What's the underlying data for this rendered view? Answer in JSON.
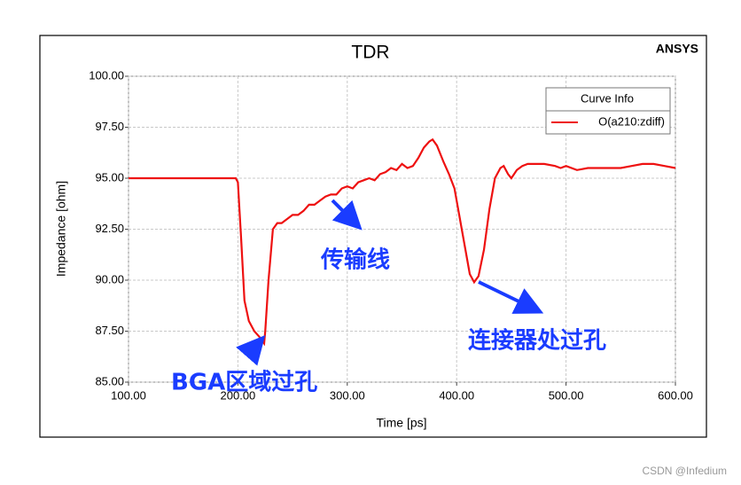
{
  "chart_data": {
    "type": "line",
    "title": "TDR",
    "brand": "ANSYS",
    "xlabel": "Time [ps]",
    "ylabel": "Impedance [ohm]",
    "xlim": [
      100,
      600
    ],
    "ylim": [
      85,
      100
    ],
    "xticks": [
      {
        "value": 100,
        "label": "100.00"
      },
      {
        "value": 200,
        "label": "200.00"
      },
      {
        "value": 300,
        "label": "300.00"
      },
      {
        "value": 400,
        "label": "400.00"
      },
      {
        "value": 500,
        "label": "500.00"
      },
      {
        "value": 600,
        "label": "600.00"
      }
    ],
    "yticks": [
      {
        "value": 85,
        "label": "85.00"
      },
      {
        "value": 87.5,
        "label": "87.50"
      },
      {
        "value": 90,
        "label": "90.00"
      },
      {
        "value": 92.5,
        "label": "92.50"
      },
      {
        "value": 95,
        "label": "95.00"
      },
      {
        "value": 97.5,
        "label": "97.50"
      },
      {
        "value": 100,
        "label": "100.00"
      }
    ],
    "grid": true,
    "legend_title": "Curve Info",
    "legend_position": "upper-right",
    "x": [
      100,
      198,
      200,
      203,
      206,
      210,
      215,
      220,
      224,
      225,
      228,
      232,
      236,
      240,
      245,
      250,
      255,
      260,
      265,
      270,
      275,
      280,
      285,
      290,
      295,
      300,
      305,
      310,
      315,
      320,
      325,
      330,
      335,
      340,
      345,
      350,
      355,
      360,
      365,
      370,
      375,
      378,
      382,
      388,
      393,
      398,
      403,
      408,
      412,
      416,
      420,
      425,
      430,
      435,
      440,
      443,
      447,
      450,
      455,
      460,
      465,
      470,
      480,
      490,
      495,
      500,
      510,
      520,
      530,
      540,
      550,
      560,
      570,
      575,
      580,
      590,
      600
    ],
    "series": [
      {
        "name": "O(a210:zdiff)",
        "color": "#ee1111",
        "values": [
          95,
          95,
          94.8,
          92,
          89,
          88,
          87.5,
          87.2,
          86.9,
          87.5,
          90,
          92.5,
          92.8,
          92.8,
          93,
          93.2,
          93.2,
          93.4,
          93.7,
          93.7,
          93.9,
          94.1,
          94.2,
          94.2,
          94.5,
          94.6,
          94.5,
          94.8,
          94.9,
          95,
          94.9,
          95.2,
          95.3,
          95.5,
          95.4,
          95.7,
          95.5,
          95.6,
          96,
          96.5,
          96.8,
          96.9,
          96.6,
          95.8,
          95.2,
          94.5,
          93,
          91.5,
          90.3,
          89.9,
          90.2,
          91.5,
          93.5,
          95,
          95.5,
          95.6,
          95.2,
          95,
          95.4,
          95.6,
          95.7,
          95.7,
          95.7,
          95.6,
          95.5,
          95.6,
          95.4,
          95.5,
          95.5,
          95.5,
          95.5,
          95.6,
          95.7,
          95.7,
          95.7,
          95.6,
          95.5
        ]
      }
    ],
    "annotations": [
      "传输线",
      "BGA区域过孔",
      "连接器处过孔"
    ],
    "watermark": "CSDN @Infedium"
  }
}
